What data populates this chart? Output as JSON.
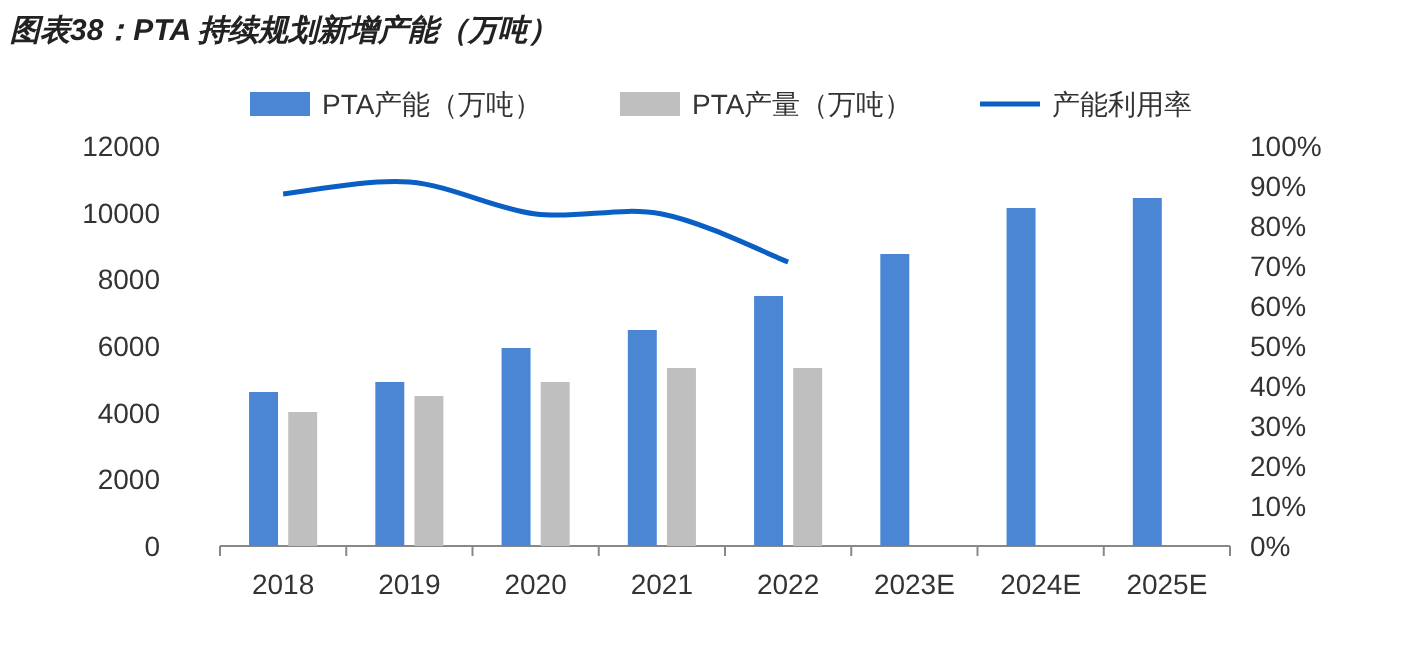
{
  "chart_data": {
    "type": "bar",
    "title": "图表38：PTA 持续规划新增产能（万吨）",
    "categories": [
      "2018",
      "2019",
      "2020",
      "2021",
      "2022",
      "2023E",
      "2024E",
      "2025E"
    ],
    "series": [
      {
        "name": "PTA产能（万吨）",
        "color": "#4a86d4",
        "values": [
          4620,
          4920,
          5940,
          6480,
          7500,
          8760,
          10140,
          10440
        ]
      },
      {
        "name": "PTA产量（万吨）",
        "color": "#bfbfbf",
        "values": [
          4020,
          4500,
          4920,
          5340,
          5340,
          null,
          null,
          null
        ]
      },
      {
        "name": "产能利用率",
        "type": "line",
        "axis": "y2",
        "color": "#0a5fc4",
        "values": [
          88,
          91,
          83,
          83,
          71,
          null,
          null,
          null
        ]
      }
    ],
    "ylim": [
      0,
      12000
    ],
    "yticks": [
      0,
      2000,
      4000,
      6000,
      8000,
      10000,
      12000
    ],
    "y2lim": [
      0,
      100
    ],
    "y2ticks": [
      {
        "value": 0,
        "label": "0%"
      },
      {
        "value": 10,
        "label": "10%"
      },
      {
        "value": 20,
        "label": "20%"
      },
      {
        "value": 30,
        "label": "30%"
      },
      {
        "value": 40,
        "label": "40%"
      },
      {
        "value": 50,
        "label": "50%"
      },
      {
        "value": 60,
        "label": "60%"
      },
      {
        "value": 70,
        "label": "70%"
      },
      {
        "value": 80,
        "label": "80%"
      },
      {
        "value": 90,
        "label": "90%"
      },
      {
        "value": 100,
        "label": "100%"
      }
    ],
    "legend": "top",
    "grid": false
  }
}
